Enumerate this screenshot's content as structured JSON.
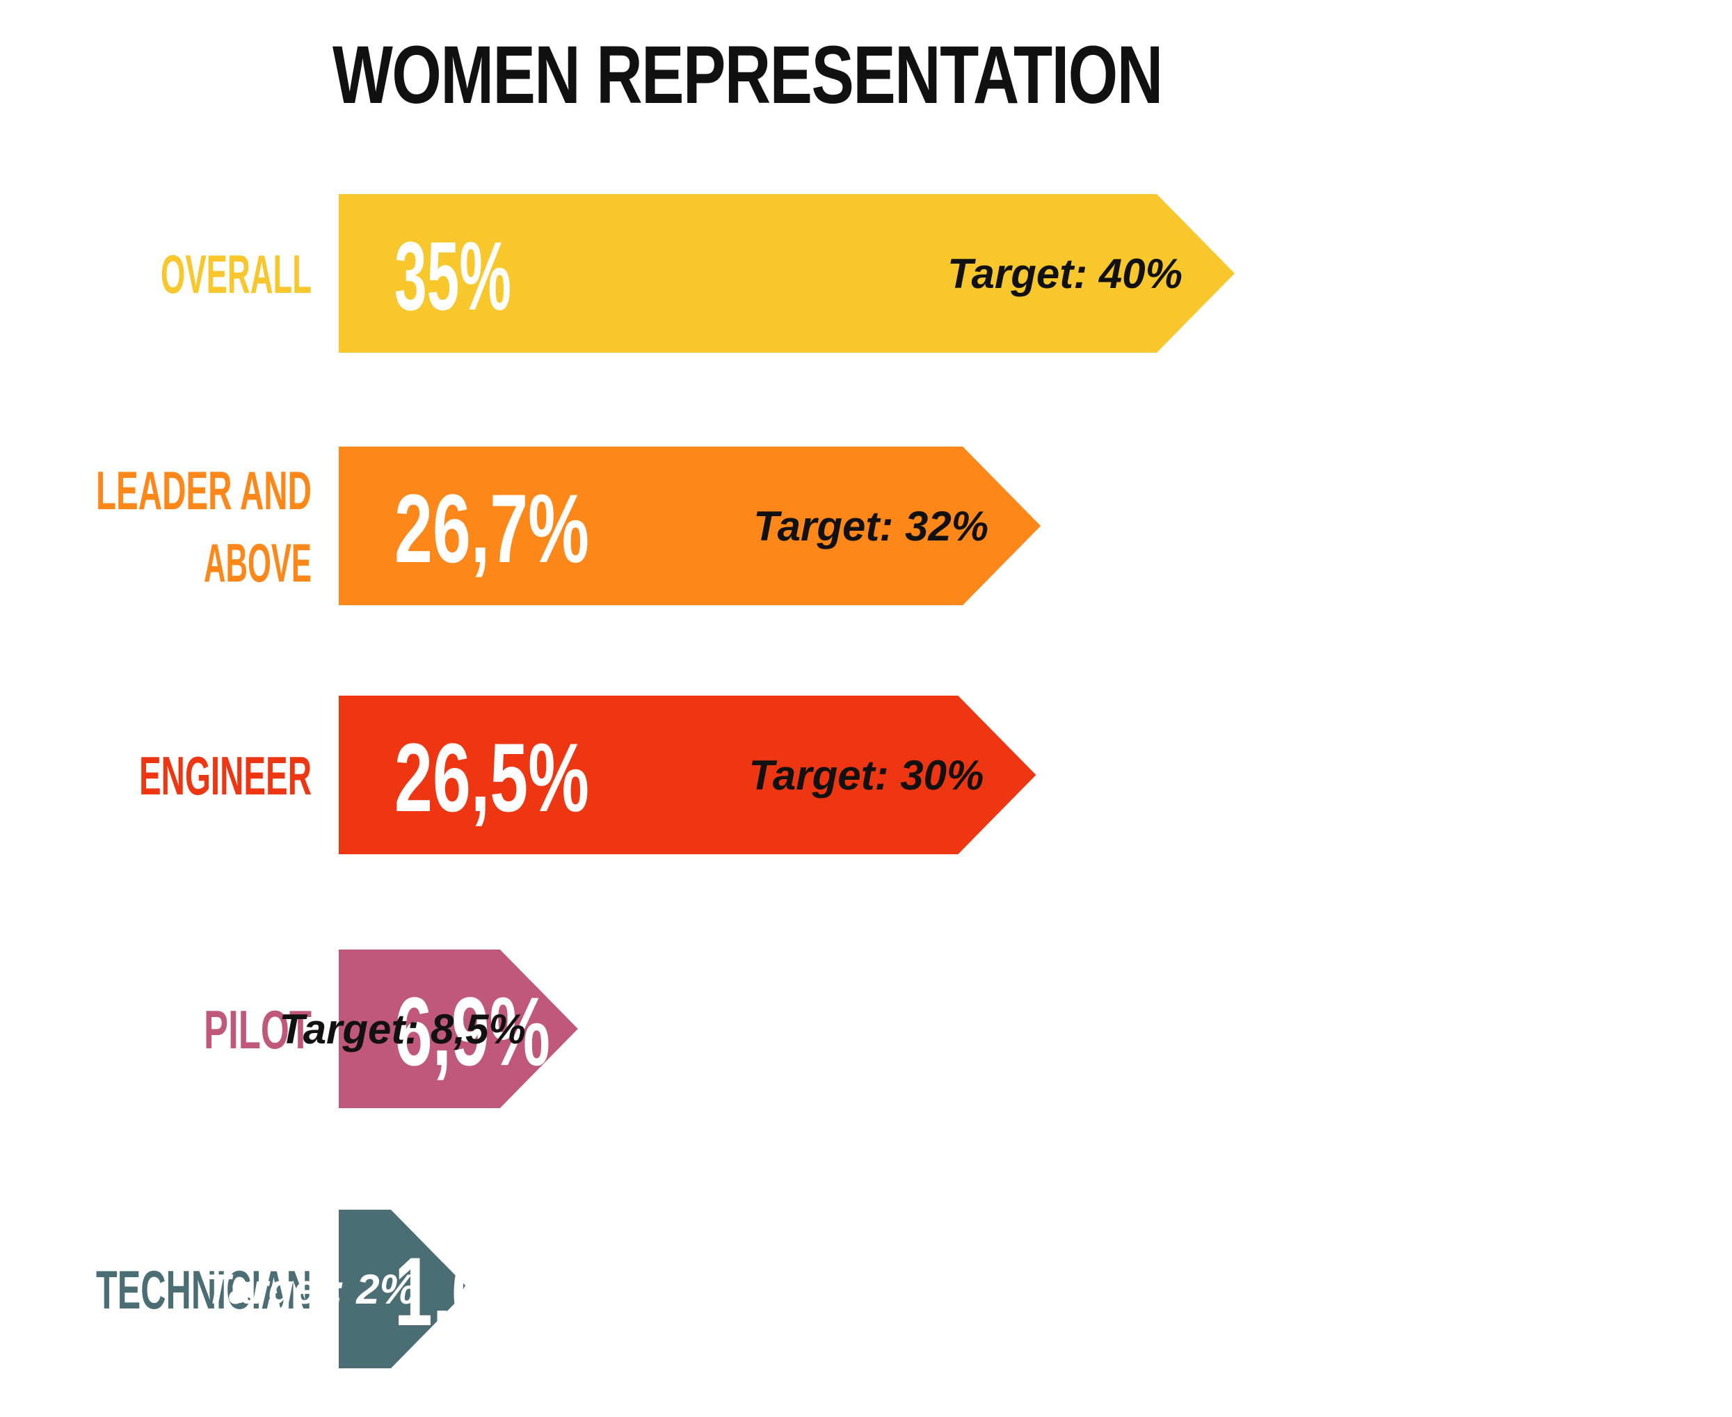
{
  "chart_data": {
    "type": "bar",
    "title": "WOMEN REPRESENTATION",
    "categories": [
      "OVERALL",
      "LEADER AND ABOVE",
      "ENGINEER",
      "PILOT",
      "TECHNICIAN"
    ],
    "values": [
      35,
      26.7,
      26.5,
      6.9,
      1.6
    ],
    "value_labels": [
      "35%",
      "26,7%",
      "26,5%",
      "6,9%",
      "1,6%"
    ],
    "targets": [
      40,
      32,
      30,
      8.5,
      2
    ],
    "target_labels": [
      "Target: 40%",
      "Target: 32%",
      "Target: 30%",
      "Target: 8,5%",
      "Target: 2%"
    ],
    "colors": [
      "#F7C72B",
      "#FD8718",
      "#EF3612",
      "#C0587C",
      "#4B6E75"
    ],
    "target_text_colors": [
      "#111111",
      "#111111",
      "#111111",
      "#111111",
      "#FFFFFF"
    ],
    "value_text_color": "#FFFFFF",
    "orientation": "horizontal",
    "bar_shape": "arrow"
  }
}
